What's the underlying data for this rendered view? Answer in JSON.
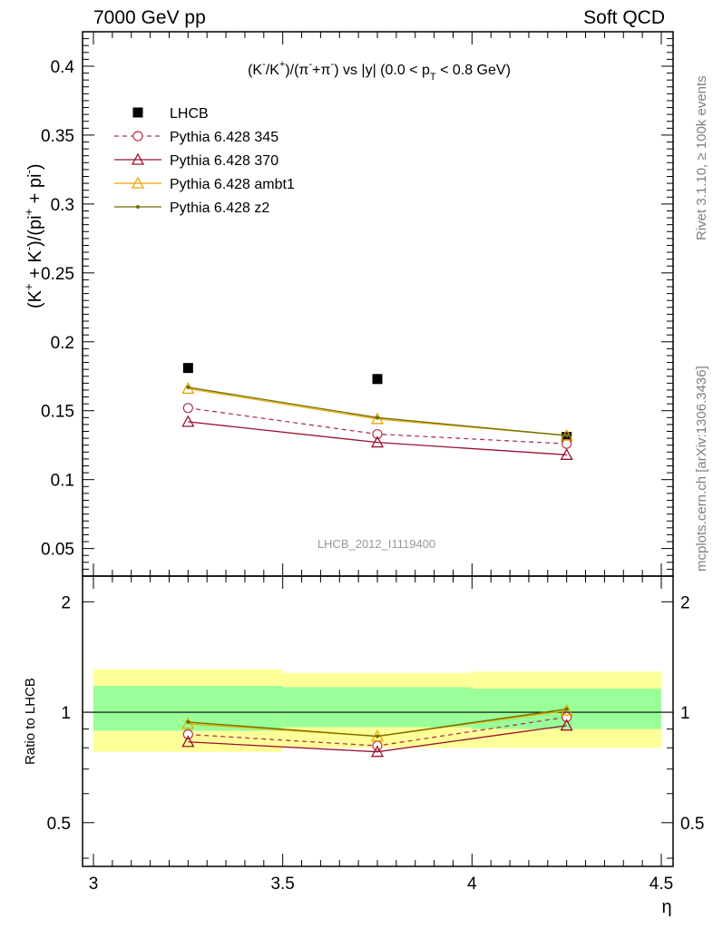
{
  "header": {
    "energy_label": "7000 GeV pp",
    "process_label": "Soft QCD"
  },
  "side": {
    "rivet": "Rivet 3.1.10, ≥ 100k events",
    "mcplots": "mcplots.cern.ch [arXiv:1306.3436]"
  },
  "chart_data": [
    {
      "type": "line",
      "title_parts": {
        "a": "(K",
        "b": "-",
        "c": "/K",
        "d": "+",
        "e": ")/(π",
        "f": "-",
        "g": "+π",
        "h": "-",
        "i": ") vs |y| (0.0 < p",
        "j": "T",
        "k": " < 0.8 GeV)"
      },
      "ylabel_parts": {
        "a": "(K",
        "b": "+",
        "c": " + K",
        "d": "-",
        "e": ")/(pi",
        "f": "+",
        "g": " + pi",
        "h": "-",
        "i": ")"
      },
      "watermark": "LHCB_2012_I1119400",
      "x": [
        3.25,
        3.75,
        4.25
      ],
      "xlim": [
        3.0,
        4.5
      ],
      "ylim": [
        0.03,
        0.425
      ],
      "yticks": [
        "0.05",
        "0.1",
        "0.15",
        "0.2",
        "0.25",
        "0.3",
        "0.35",
        "0.4"
      ],
      "legend_position": "top-left",
      "series": [
        {
          "name": "LHCB",
          "values": [
            0.181,
            0.173,
            0.131
          ],
          "color": "#000000",
          "marker": "square"
        },
        {
          "name": "Pythia 6.428 345",
          "values": [
            0.152,
            0.133,
            0.126
          ],
          "color": "#b2354a",
          "marker": "circle",
          "dash": true
        },
        {
          "name": "Pythia 6.428 370",
          "values": [
            0.142,
            0.127,
            0.118
          ],
          "color": "#9a1030",
          "marker": "triangle"
        },
        {
          "name": "Pythia 6.428 ambt1",
          "values": [
            0.166,
            0.144,
            0.132
          ],
          "color": "#e8a800",
          "marker": "triangle"
        },
        {
          "name": "Pythia 6.428 z2",
          "values": [
            0.167,
            0.145,
            0.132
          ],
          "color": "#6f6f00",
          "marker": "dot"
        }
      ]
    },
    {
      "type": "line",
      "ylabel": "Ratio to LHCB",
      "xlabel": "η",
      "x": [
        3.25,
        3.75,
        4.25
      ],
      "xlim": [
        3.0,
        4.5
      ],
      "xticks": [
        "3",
        "3.5",
        "4",
        "4.5"
      ],
      "ylim": [
        0.38,
        2.35
      ],
      "yticks": [
        "0.5",
        "1",
        "2"
      ],
      "bands": {
        "bins": [
          [
            3.0,
            3.5
          ],
          [
            3.5,
            4.0
          ],
          [
            4.0,
            4.5
          ]
        ],
        "yellow_low": [
          0.78,
          0.8,
          0.8
        ],
        "yellow_high": [
          1.31,
          1.28,
          1.29
        ],
        "green_low": [
          0.89,
          0.91,
          0.9
        ],
        "green_high": [
          1.18,
          1.17,
          1.16
        ],
        "yellow_color": "#ffff99",
        "green_color": "#99ff99"
      },
      "series": [
        {
          "name": "Pythia 6.428 345",
          "values": [
            0.87,
            0.81,
            0.97
          ]
        },
        {
          "name": "Pythia 6.428 370",
          "values": [
            0.83,
            0.78,
            0.92
          ]
        },
        {
          "name": "Pythia 6.428 ambt1",
          "values": [
            0.93,
            0.86,
            1.01
          ]
        },
        {
          "name": "Pythia 6.428 z2",
          "values": [
            0.94,
            0.86,
            1.02
          ]
        }
      ]
    }
  ]
}
